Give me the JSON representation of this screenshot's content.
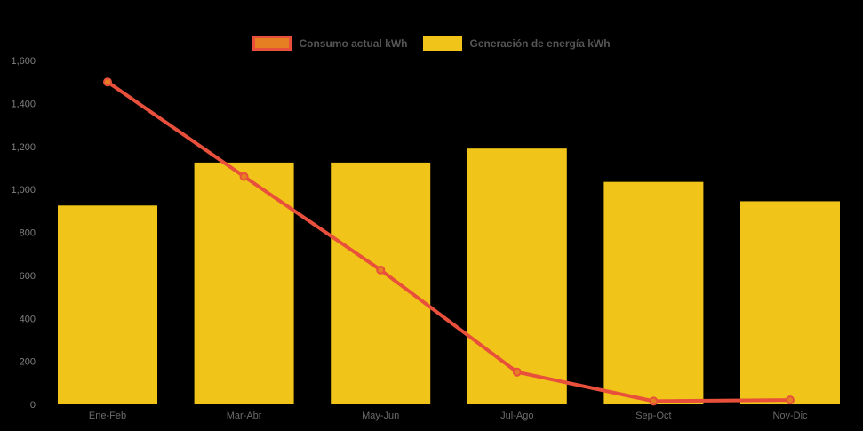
{
  "chart_data": {
    "type": "combo",
    "title": "",
    "categories": [
      "Ene-Feb",
      "Mar-Abr",
      "May-Jun",
      "Jul-Ago",
      "Sep-Oct",
      "Nov-Dic"
    ],
    "series": [
      {
        "name": "Consumo actual kWh",
        "type": "line",
        "color": "#E8503C",
        "marker_color": "#E67E22",
        "values": [
          1500,
          1060,
          625,
          150,
          15,
          20
        ]
      },
      {
        "name": "Generación de energía kWh",
        "type": "bar",
        "color": "#F0C419",
        "values": [
          925,
          1125,
          1125,
          1190,
          1035,
          945
        ]
      }
    ],
    "ylim": [
      0,
      1600
    ],
    "y_ticks": {
      "values": [
        0,
        200,
        400,
        600,
        800,
        1000,
        1200,
        1400,
        1600
      ],
      "labels": [
        "0",
        "200",
        "400",
        "600",
        "800",
        "1,000",
        "1,200",
        "1,400",
        "1,600"
      ]
    },
    "xlabel": "",
    "ylabel": "",
    "grid": false,
    "legend_position": "top-center",
    "background_color": "#000000",
    "axis_tick_color": "#7F7F7F",
    "x_label_color": "#6B6B6B",
    "legend_text_color": "#555555"
  }
}
